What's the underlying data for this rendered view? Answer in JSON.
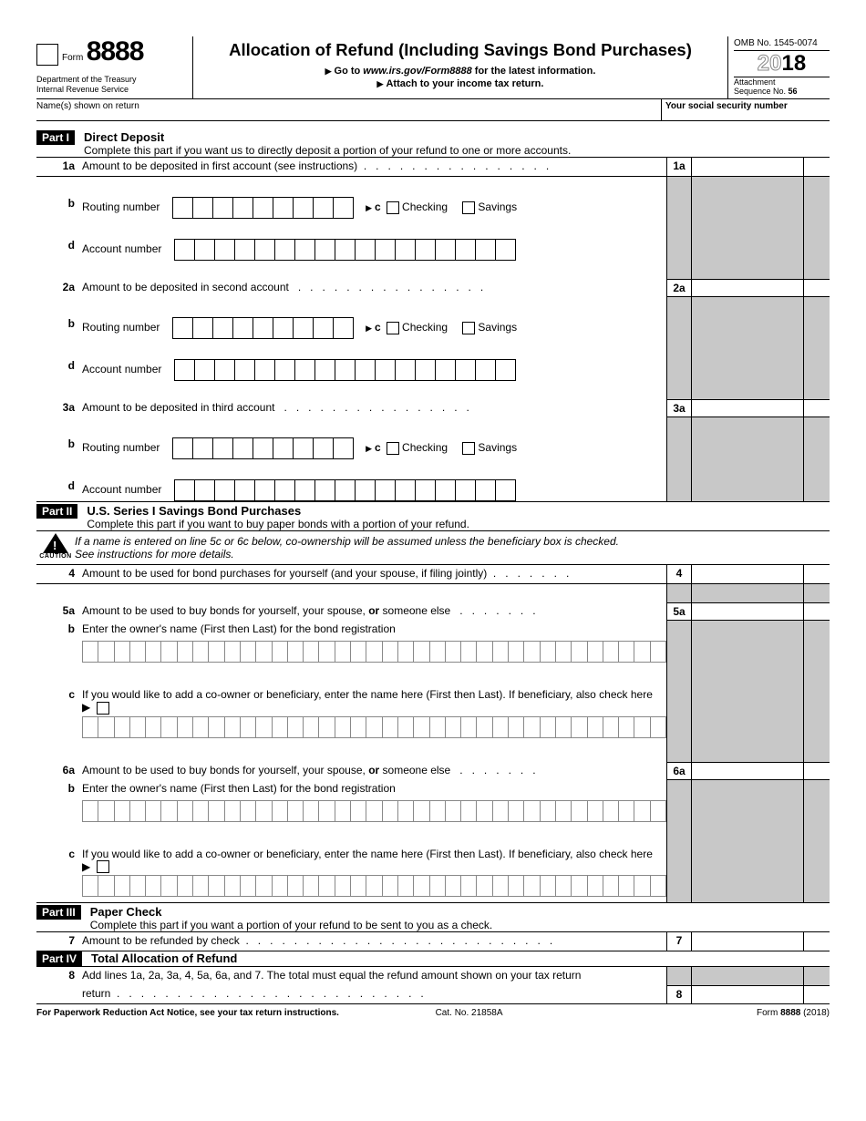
{
  "header": {
    "form_word": "Form",
    "form_number": "8888",
    "dept1": "Department of the Treasury",
    "dept2": "Internal Revenue Service",
    "title": "Allocation of Refund (Including Savings Bond Purchases)",
    "sub1_pre": "Go to ",
    "sub1_url": "www.irs.gov/Form8888",
    "sub1_post": " for the latest information.",
    "sub2": "Attach to your income tax return.",
    "omb": "OMB No. 1545-0074",
    "year_light": "20",
    "year_bold": "18",
    "attachment": "Attachment",
    "seq_label": "Sequence No. ",
    "seq_num": "56",
    "name_label": "Name(s) shown on return",
    "ssn_label": "Your social security number"
  },
  "part1": {
    "label": "Part I",
    "title": "Direct Deposit",
    "sub": "Complete this part if you want us to directly deposit a portion of your refund to one or more accounts.",
    "l1a_num": "1a",
    "l1a_text": "Amount to be deposited in first account (see instructions)",
    "l1a_col": "1a",
    "l1b_num": "b",
    "l1b_text": "Routing number",
    "l1c_label": "c",
    "checking": "Checking",
    "savings": "Savings",
    "l1d_num": "d",
    "l1d_text": "Account number",
    "l2a_num": "2a",
    "l2a_text": "Amount to be deposited in second account",
    "l2a_col": "2a",
    "l3a_num": "3a",
    "l3a_text": "Amount to be deposited in third account",
    "l3a_col": "3a"
  },
  "part2": {
    "label": "Part II",
    "title": "U.S. Series I Savings Bond Purchases",
    "sub": "Complete this part if you want to buy paper bonds with a portion of your refund.",
    "caution": "CAUTION",
    "caution_text1": "If a name is entered on line 5c or 6c below, co-ownership will be assumed unless the beneficiary box is checked.",
    "caution_text2": "See instructions for more details.",
    "l4_num": "4",
    "l4_text": "Amount to be used for bond purchases for yourself (and your spouse, if filing jointly)",
    "l4_col": "4",
    "l5a_num": "5a",
    "l5a_text": "Amount to be used to buy bonds for yourself, your spouse, ",
    "l5a_or": "or",
    "l5a_text2": " someone else",
    "l5a_col": "5a",
    "l5b_num": "b",
    "l5b_text": "Enter the owner's name (First then Last) for the bond registration",
    "l5c_num": "c",
    "l5c_text": "If you would like to add a co-owner or beneficiary, enter the name here (First then Last). If beneficiary, also check here ▶",
    "l6a_num": "6a",
    "l6a_col": "6a"
  },
  "part3": {
    "label": "Part III",
    "title": "Paper Check",
    "sub": "Complete this part if you want a portion of your refund to be sent to you as a check.",
    "l7_num": "7",
    "l7_text": "Amount to be refunded by check",
    "l7_col": "7"
  },
  "part4": {
    "label": "Part IV",
    "title": "Total Allocation of Refund",
    "l8_num": "8",
    "l8_text": "Add lines 1a, 2a, 3a, 4, 5a, 6a, and 7. The total must equal the refund amount shown on your tax return",
    "l8_col": "8"
  },
  "footer": {
    "left": "For Paperwork Reduction Act Notice, see your tax return instructions.",
    "mid": "Cat. No. 21858A",
    "right_pre": "Form ",
    "right_num": "8888",
    "right_post": " (2018)"
  },
  "boxes": {
    "routing": 9,
    "account": 17,
    "name": 37
  }
}
